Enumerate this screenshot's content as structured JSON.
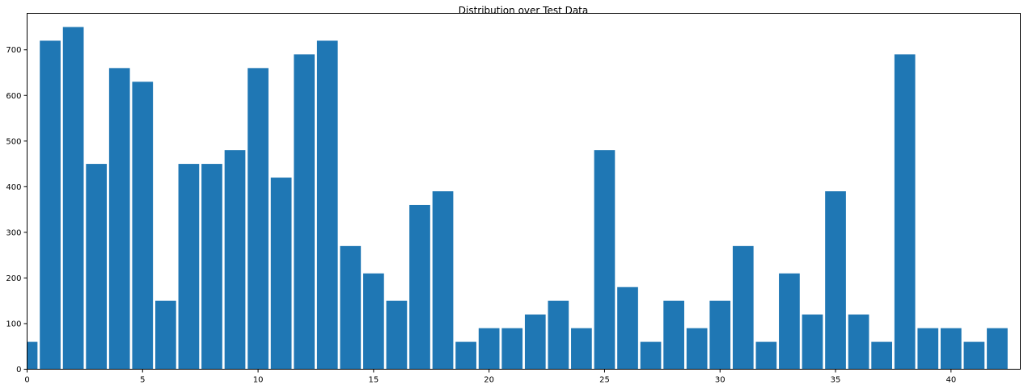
{
  "chart_data": {
    "type": "bar",
    "title": "Distribution over Test Data",
    "xlabel": "",
    "ylabel": "",
    "x": [
      0,
      1,
      2,
      3,
      4,
      5,
      6,
      7,
      8,
      9,
      10,
      11,
      12,
      13,
      14,
      15,
      16,
      17,
      18,
      19,
      20,
      21,
      22,
      23,
      24,
      25,
      26,
      27,
      28,
      29,
      30,
      31,
      32,
      33,
      34,
      35,
      36,
      37,
      38,
      39,
      40,
      41,
      42
    ],
    "values": [
      60,
      720,
      750,
      450,
      660,
      630,
      150,
      450,
      450,
      480,
      660,
      420,
      690,
      720,
      270,
      210,
      150,
      360,
      390,
      60,
      90,
      90,
      120,
      150,
      90,
      480,
      180,
      60,
      150,
      90,
      150,
      270,
      60,
      210,
      120,
      390,
      120,
      60,
      690,
      90,
      90,
      60,
      90
    ],
    "bar_width": 0.9,
    "xlim": [
      0,
      43
    ],
    "ylim": [
      0,
      780
    ],
    "xticks": [
      0,
      5,
      10,
      15,
      20,
      25,
      30,
      35,
      40
    ],
    "yticks": [
      0,
      100,
      200,
      300,
      400,
      500,
      600,
      700
    ],
    "grid": false,
    "colors": {
      "bar": "#1f77b4"
    }
  }
}
